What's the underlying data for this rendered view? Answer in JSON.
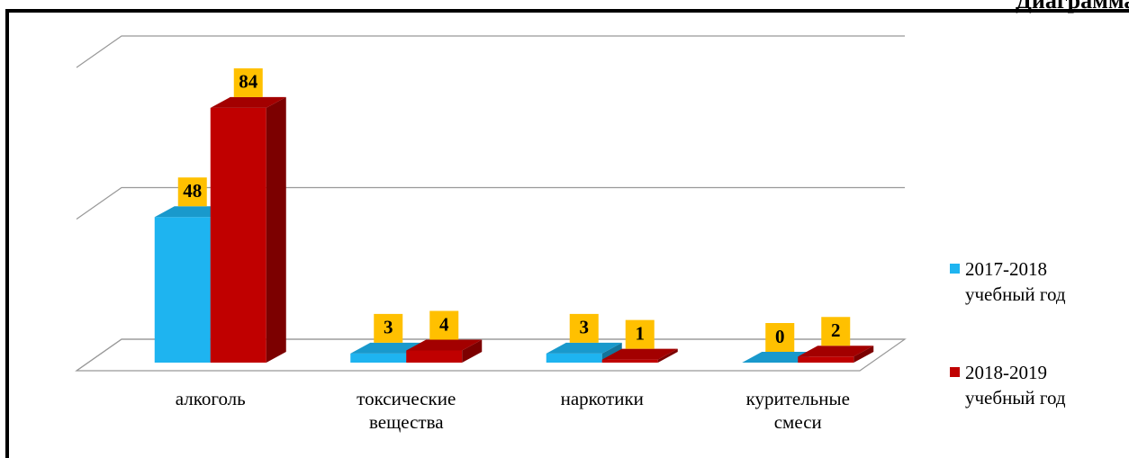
{
  "chart_data": {
    "type": "bar3d",
    "title": "Диаграмма №",
    "categories": [
      "алкоголь",
      "токсические вещества",
      "наркотики",
      "курительные смеси"
    ],
    "series": [
      {
        "name": "2017-2018 учебный год",
        "color": "#1eb4f0",
        "values": [
          48,
          3,
          3,
          0
        ]
      },
      {
        "name": "2018-2019 учебный год",
        "color": "#c00000",
        "values": [
          84,
          4,
          1,
          2
        ]
      }
    ],
    "ylim": [
      0,
      100
    ],
    "yticks": [
      0,
      50,
      100
    ],
    "grid": true,
    "legend": "right"
  }
}
